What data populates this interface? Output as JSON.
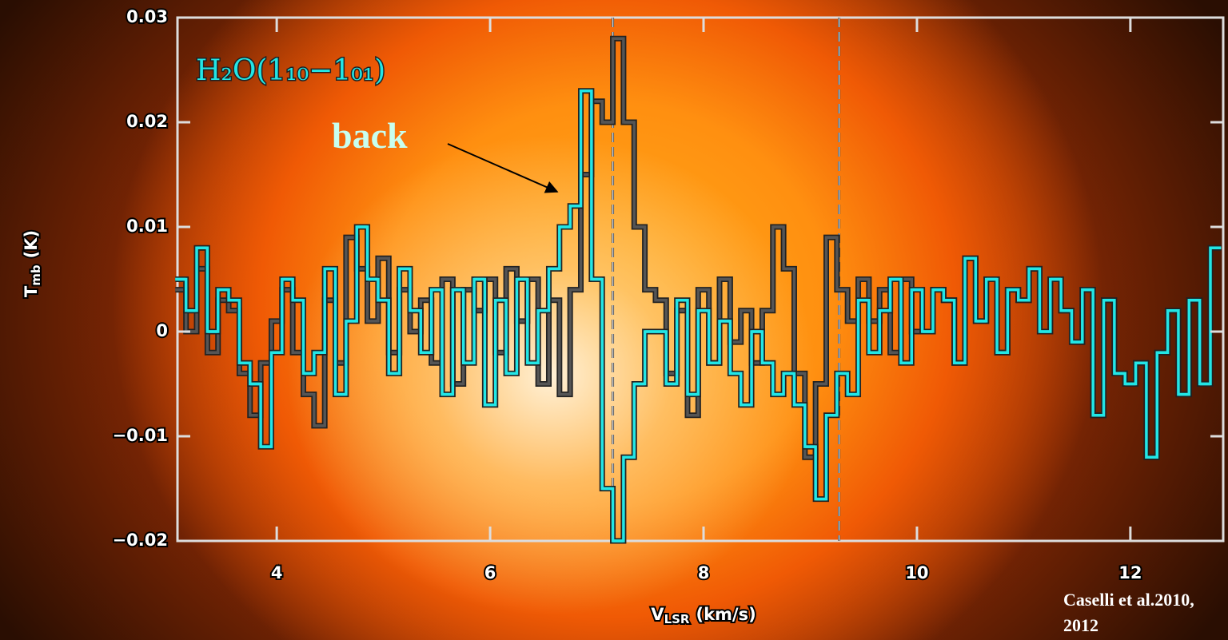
{
  "chart_data": {
    "type": "step",
    "x": [
      3.1,
      3.2,
      3.3,
      3.4,
      3.5,
      3.6,
      3.7,
      3.8,
      3.9,
      4.0,
      4.1,
      4.2,
      4.3,
      4.4,
      4.5,
      4.6,
      4.7,
      4.8,
      4.9,
      5.0,
      5.1,
      5.2,
      5.3,
      5.4,
      5.5,
      5.6,
      5.7,
      5.8,
      5.9,
      6.0,
      6.1,
      6.2,
      6.3,
      6.4,
      6.5,
      6.6,
      6.7,
      6.8,
      6.9,
      7.0,
      7.1,
      7.2,
      7.3,
      7.4,
      7.5,
      7.6,
      7.7,
      7.8,
      7.9,
      8.0,
      8.1,
      8.2,
      8.3,
      8.4,
      8.5,
      8.6,
      8.7,
      8.8,
      8.9,
      9.0,
      9.1,
      9.2,
      9.3,
      9.4,
      9.5,
      9.6,
      9.7,
      9.8,
      9.9,
      10.0,
      10.1,
      10.2,
      10.3,
      10.4,
      10.5,
      10.6,
      10.7,
      10.8,
      10.9,
      11.0,
      11.1,
      11.2,
      11.3,
      11.4,
      11.5,
      11.6,
      11.7,
      11.8,
      11.9,
      12.0,
      12.1,
      12.2,
      12.3,
      12.4,
      12.5,
      12.6,
      12.7,
      12.8
    ],
    "xlim": [
      3.07,
      12.87
    ],
    "xticks": [
      4,
      6,
      8,
      10,
      12
    ],
    "ylim": [
      -0.02,
      0.03
    ],
    "yticks": [
      0.03,
      0.02,
      0.01,
      0,
      {
        "value": -0.01,
        "label": "−0.01"
      },
      {
        "value": -0.02,
        "label": "−0.02"
      }
    ],
    "x_label": {
      "main": "V",
      "sub": "LSR",
      "unit": "(km/s)"
    },
    "y_label": {
      "main": "T",
      "sub": "mb",
      "unit": "(K)"
    },
    "vlines": [
      7.15,
      9.27
    ],
    "series": [
      {
        "color": "#555555",
        "values": [
          0.004,
          0.0,
          0.006,
          -0.002,
          0.003,
          0.002,
          -0.004,
          -0.008,
          -0.003,
          0.001,
          0.004,
          -0.002,
          -0.006,
          -0.009,
          0.003,
          -0.003,
          0.009,
          0.006,
          0.001,
          0.007,
          -0.002,
          0.004,
          0.0,
          0.003,
          -0.003,
          0.005,
          -0.005,
          0.004,
          0.002,
          0.005,
          -0.002,
          0.006,
          0.001,
          0.005,
          -0.005,
          0.003,
          -0.006,
          0.004,
          0.015,
          0.022,
          0.02,
          0.028,
          0.02,
          0.01,
          0.004,
          0.003,
          -0.004,
          0.002,
          -0.008,
          0.004,
          -0.003,
          0.005,
          -0.001,
          0.002,
          -0.003,
          0.002,
          0.01,
          0.006,
          -0.004,
          -0.012,
          -0.005,
          0.009,
          0.004,
          0.001,
          0.005,
          0.001,
          0.004,
          -0.002,
          0.005,
          0.0,
          0.0,
          0.004,
          0.003,
          -0.003,
          0.007,
          0.001,
          0.005,
          -0.002,
          0.004,
          0.003,
          0.006,
          0.0,
          0.005,
          0.002,
          -0.001,
          0.004,
          -0.008,
          0.003,
          -0.004,
          -0.005,
          -0.003,
          -0.012,
          -0.002,
          0.002,
          -0.006,
          0.003,
          -0.005,
          0.008
        ]
      },
      {
        "color": "#22e6e6",
        "values": [
          0.005,
          0.002,
          0.008,
          0.0,
          0.004,
          0.003,
          -0.003,
          -0.005,
          -0.011,
          -0.002,
          0.005,
          0.003,
          -0.004,
          -0.002,
          0.006,
          -0.006,
          0.001,
          0.01,
          0.005,
          0.003,
          -0.004,
          0.006,
          0.002,
          -0.002,
          0.004,
          -0.006,
          0.004,
          -0.003,
          0.005,
          -0.007,
          0.003,
          -0.004,
          0.005,
          -0.003,
          0.002,
          0.006,
          0.01,
          0.012,
          0.023,
          0.005,
          -0.015,
          -0.02,
          -0.012,
          -0.005,
          0.0,
          0.0,
          -0.005,
          0.003,
          -0.006,
          0.002,
          -0.003,
          0.001,
          -0.004,
          -0.007,
          0.0,
          -0.003,
          -0.006,
          -0.004,
          -0.007,
          -0.011,
          -0.016,
          -0.008,
          -0.004,
          -0.006,
          0.003,
          -0.002,
          0.002,
          0.005,
          -0.003,
          0.004,
          0.0,
          0.004,
          0.003,
          -0.003,
          0.007,
          0.001,
          0.005,
          -0.002,
          0.004,
          0.003,
          0.006,
          0.0,
          0.005,
          0.002,
          -0.001,
          0.004,
          -0.008,
          0.003,
          -0.004,
          -0.005,
          -0.003,
          -0.012,
          -0.002,
          0.002,
          -0.006,
          0.003,
          -0.005,
          0.008
        ]
      }
    ],
    "species": "H₂O(1₁₀−1₀₁)",
    "pointer": "back",
    "credit": [
      "Caselli et al.2010,",
      "2012"
    ]
  }
}
